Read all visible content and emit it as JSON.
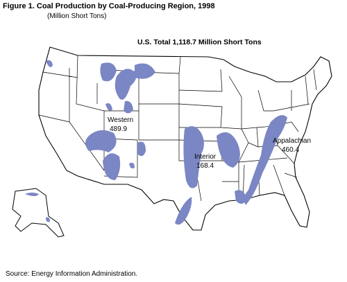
{
  "title": "Figure 1.   Coal Production by Coal-Producing Region, 1998",
  "subtitle": "(Million Short Tons)",
  "map": {
    "total": "U.S. Total 1,118.7 Million Short Tons",
    "regions": [
      {
        "name": "Western",
        "value": 489.9
      },
      {
        "name": "Interior",
        "value": 168.4
      },
      {
        "name": "Appalachian",
        "value": 460.4
      }
    ]
  },
  "source": "Source:  Energy Information Administration."
}
